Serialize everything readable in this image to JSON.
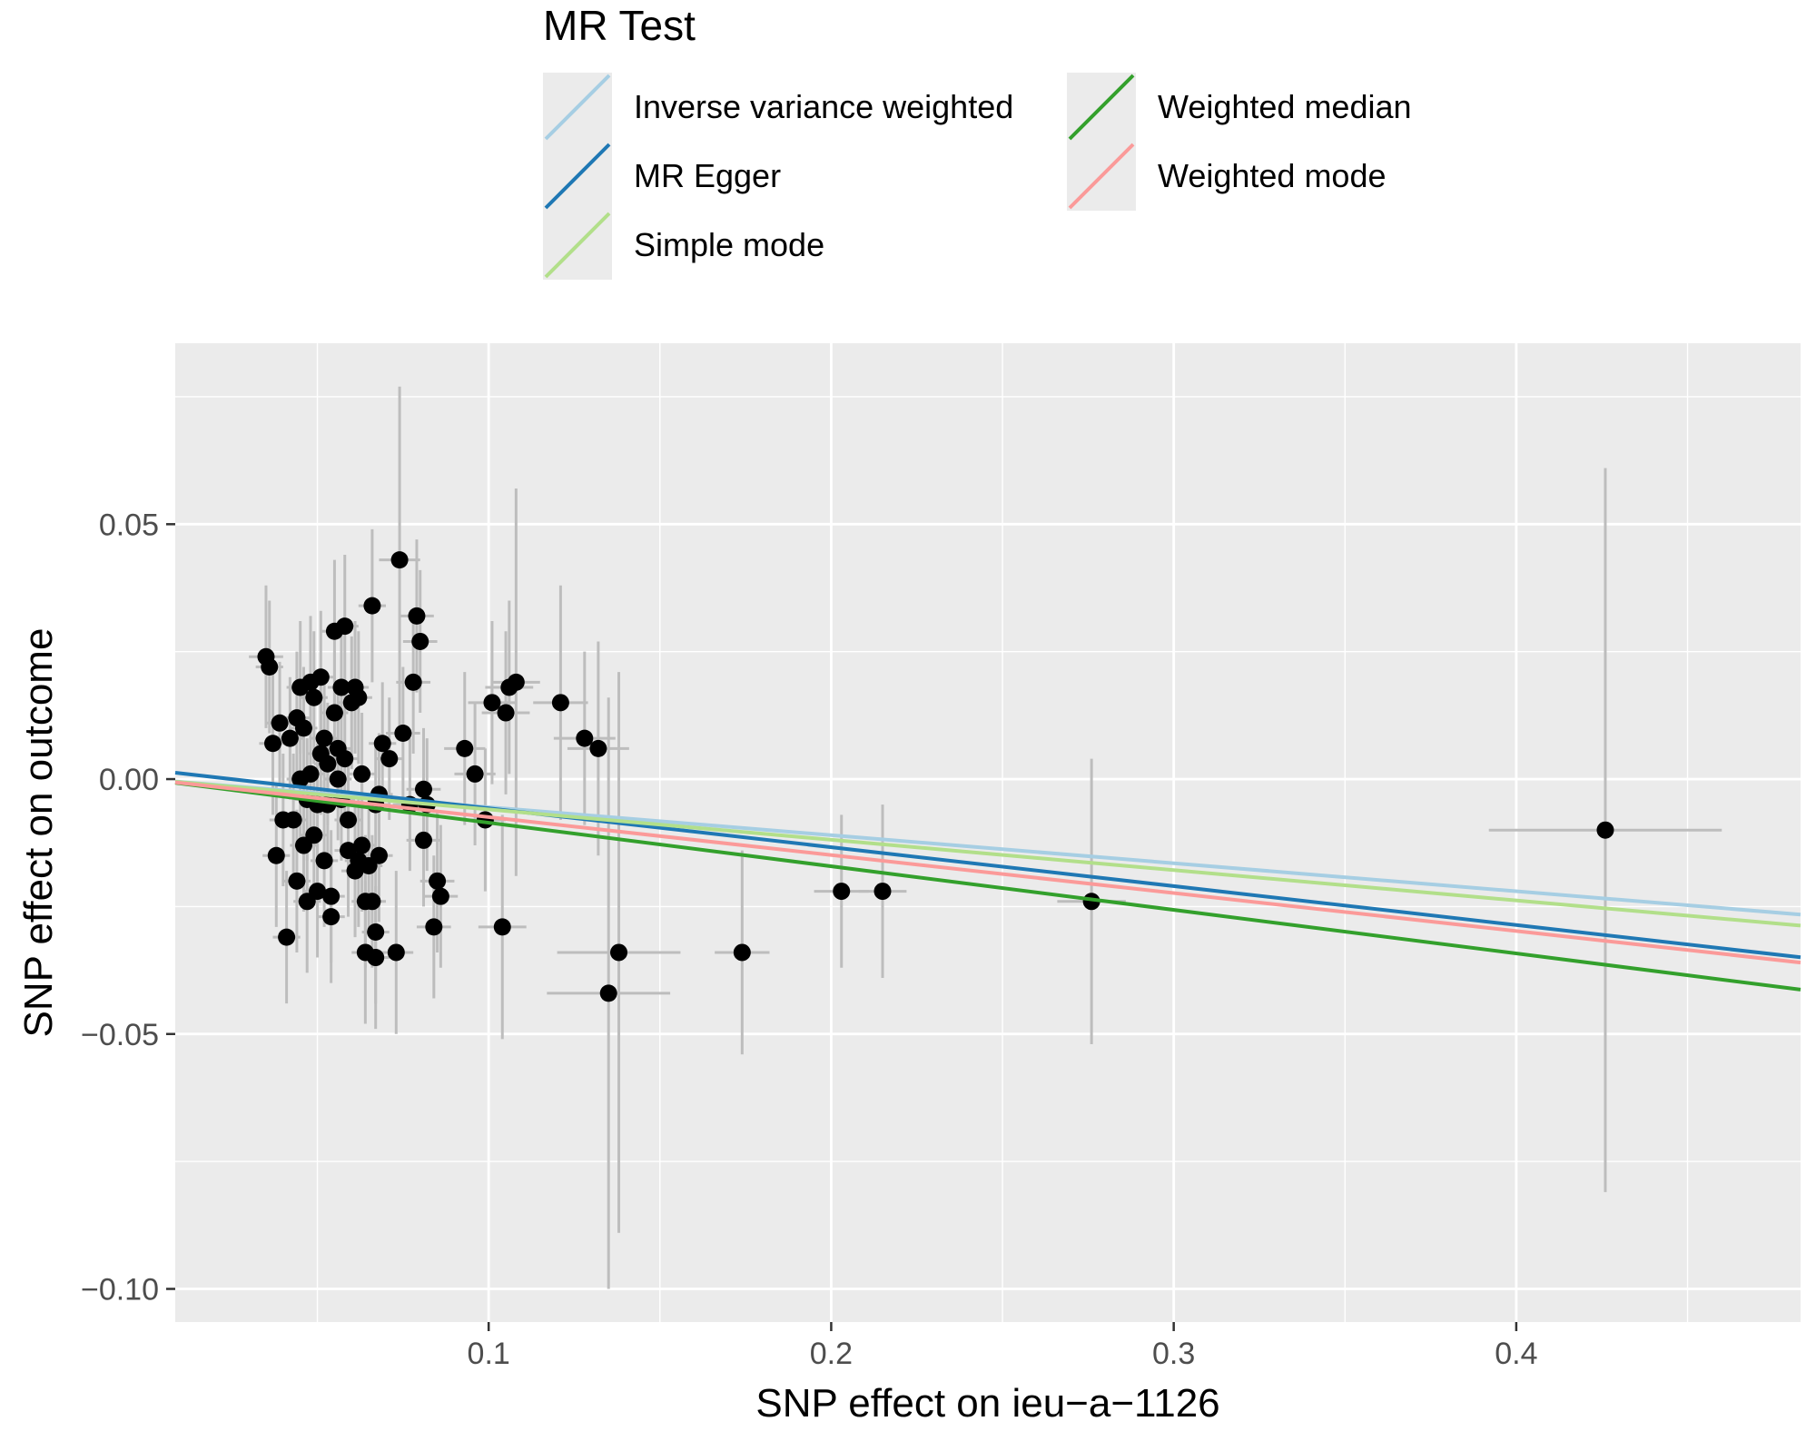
{
  "chart_data": {
    "type": "scatter",
    "xlabel": "SNP effect on ieu−a−1126",
    "ylabel": "SNP effect on outcome",
    "xlim": [
      0.0085,
      0.483
    ],
    "ylim": [
      -0.1065,
      0.0855
    ],
    "x_ticks": [
      {
        "v": 0.1,
        "label": "0.1"
      },
      {
        "v": 0.2,
        "label": "0.2"
      },
      {
        "v": 0.3,
        "label": "0.3"
      },
      {
        "v": 0.4,
        "label": "0.4"
      }
    ],
    "y_ticks": [
      {
        "v": 0.05,
        "label": "0.05"
      },
      {
        "v": 0.0,
        "label": "0.00"
      },
      {
        "v": -0.05,
        "label": "−0.05"
      },
      {
        "v": -0.1,
        "label": "−0.10"
      }
    ],
    "legend": {
      "title": "MR Test",
      "position": "top",
      "entries": [
        {
          "name": "Inverse variance weighted",
          "color": "#A6CEE3"
        },
        {
          "name": "MR Egger",
          "color": "#1F78B4"
        },
        {
          "name": "Simple mode",
          "color": "#B2DF8A"
        },
        {
          "name": "Weighted median",
          "color": "#33A02C"
        },
        {
          "name": "Weighted mode",
          "color": "#FB9A99"
        }
      ]
    },
    "lines": [
      {
        "name": "Inverse variance weighted",
        "color": "#A6CEE3",
        "intercept": 0.0,
        "slope": -0.055
      },
      {
        "name": "MR Egger",
        "color": "#1F78B4",
        "intercept": 0.0019,
        "slope": -0.0763
      },
      {
        "name": "Simple mode",
        "color": "#B2DF8A",
        "intercept": 0.0,
        "slope": -0.0595
      },
      {
        "name": "Weighted median",
        "color": "#33A02C",
        "intercept": 0.0,
        "slope": -0.0855
      },
      {
        "name": "Weighted mode",
        "color": "#FB9A99",
        "intercept": 0.0,
        "slope": -0.0745
      }
    ],
    "points": [
      {
        "x": 0.035,
        "y": 0.024,
        "xse": 0.005,
        "yse": 0.014
      },
      {
        "x": 0.036,
        "y": 0.022,
        "xse": 0.004,
        "yse": 0.013
      },
      {
        "x": 0.037,
        "y": 0.007,
        "xse": 0.004,
        "yse": 0.014
      },
      {
        "x": 0.038,
        "y": -0.015,
        "xse": 0.004,
        "yse": 0.014
      },
      {
        "x": 0.039,
        "y": 0.011,
        "xse": 0.004,
        "yse": 0.012
      },
      {
        "x": 0.04,
        "y": -0.008,
        "xse": 0.004,
        "yse": 0.013
      },
      {
        "x": 0.041,
        "y": -0.031,
        "xse": 0.004,
        "yse": 0.013
      },
      {
        "x": 0.042,
        "y": 0.008,
        "xse": 0.004,
        "yse": 0.012
      },
      {
        "x": 0.043,
        "y": -0.008,
        "xse": 0.004,
        "yse": 0.013
      },
      {
        "x": 0.044,
        "y": 0.012,
        "xse": 0.004,
        "yse": 0.013
      },
      {
        "x": 0.044,
        "y": -0.02,
        "xse": 0.004,
        "yse": 0.014
      },
      {
        "x": 0.045,
        "y": 0.0,
        "xse": 0.004,
        "yse": 0.012
      },
      {
        "x": 0.045,
        "y": 0.018,
        "xse": 0.004,
        "yse": 0.013
      },
      {
        "x": 0.046,
        "y": -0.013,
        "xse": 0.004,
        "yse": 0.013
      },
      {
        "x": 0.046,
        "y": 0.01,
        "xse": 0.004,
        "yse": 0.012
      },
      {
        "x": 0.047,
        "y": -0.024,
        "xse": 0.004,
        "yse": 0.014
      },
      {
        "x": 0.047,
        "y": -0.004,
        "xse": 0.004,
        "yse": 0.012
      },
      {
        "x": 0.048,
        "y": 0.019,
        "xse": 0.004,
        "yse": 0.013
      },
      {
        "x": 0.048,
        "y": 0.001,
        "xse": 0.004,
        "yse": 0.012
      },
      {
        "x": 0.049,
        "y": -0.011,
        "xse": 0.004,
        "yse": 0.013
      },
      {
        "x": 0.049,
        "y": 0.016,
        "xse": 0.004,
        "yse": 0.013
      },
      {
        "x": 0.05,
        "y": -0.022,
        "xse": 0.004,
        "yse": 0.013
      },
      {
        "x": 0.05,
        "y": -0.005,
        "xse": 0.004,
        "yse": 0.012
      },
      {
        "x": 0.051,
        "y": 0.02,
        "xse": 0.004,
        "yse": 0.013
      },
      {
        "x": 0.051,
        "y": 0.005,
        "xse": 0.004,
        "yse": 0.012
      },
      {
        "x": 0.052,
        "y": -0.016,
        "xse": 0.004,
        "yse": 0.013
      },
      {
        "x": 0.052,
        "y": 0.008,
        "xse": 0.004,
        "yse": 0.012
      },
      {
        "x": 0.053,
        "y": -0.005,
        "xse": 0.004,
        "yse": 0.012
      },
      {
        "x": 0.053,
        "y": 0.003,
        "xse": 0.004,
        "yse": 0.012
      },
      {
        "x": 0.054,
        "y": -0.023,
        "xse": 0.004,
        "yse": 0.013
      },
      {
        "x": 0.054,
        "y": -0.027,
        "xse": 0.004,
        "yse": 0.013
      },
      {
        "x": 0.055,
        "y": 0.013,
        "xse": 0.004,
        "yse": 0.012
      },
      {
        "x": 0.055,
        "y": 0.029,
        "xse": 0.004,
        "yse": 0.014
      },
      {
        "x": 0.056,
        "y": 0.0,
        "xse": 0.004,
        "yse": 0.012
      },
      {
        "x": 0.056,
        "y": 0.006,
        "xse": 0.004,
        "yse": 0.012
      },
      {
        "x": 0.057,
        "y": -0.004,
        "xse": 0.004,
        "yse": 0.012
      },
      {
        "x": 0.057,
        "y": 0.018,
        "xse": 0.004,
        "yse": 0.013
      },
      {
        "x": 0.058,
        "y": 0.03,
        "xse": 0.004,
        "yse": 0.014
      },
      {
        "x": 0.058,
        "y": 0.004,
        "xse": 0.004,
        "yse": 0.012
      },
      {
        "x": 0.059,
        "y": -0.008,
        "xse": 0.004,
        "yse": 0.012
      },
      {
        "x": 0.059,
        "y": -0.014,
        "xse": 0.004,
        "yse": 0.013
      },
      {
        "x": 0.06,
        "y": 0.015,
        "xse": 0.004,
        "yse": 0.013
      },
      {
        "x": 0.061,
        "y": 0.018,
        "xse": 0.004,
        "yse": 0.013
      },
      {
        "x": 0.061,
        "y": -0.018,
        "xse": 0.004,
        "yse": 0.013
      },
      {
        "x": 0.062,
        "y": 0.016,
        "xse": 0.004,
        "yse": 0.013
      },
      {
        "x": 0.062,
        "y": -0.016,
        "xse": 0.004,
        "yse": 0.013
      },
      {
        "x": 0.063,
        "y": -0.013,
        "xse": 0.004,
        "yse": 0.013
      },
      {
        "x": 0.063,
        "y": 0.001,
        "xse": 0.004,
        "yse": 0.012
      },
      {
        "x": 0.064,
        "y": -0.034,
        "xse": 0.004,
        "yse": 0.014
      },
      {
        "x": 0.064,
        "y": -0.024,
        "xse": 0.004,
        "yse": 0.013
      },
      {
        "x": 0.065,
        "y": -0.017,
        "xse": 0.004,
        "yse": 0.013
      },
      {
        "x": 0.066,
        "y": -0.024,
        "xse": 0.004,
        "yse": 0.013
      },
      {
        "x": 0.066,
        "y": 0.034,
        "xse": 0.004,
        "yse": 0.015
      },
      {
        "x": 0.067,
        "y": -0.035,
        "xse": 0.004,
        "yse": 0.014
      },
      {
        "x": 0.067,
        "y": -0.03,
        "xse": 0.004,
        "yse": 0.014
      },
      {
        "x": 0.067,
        "y": -0.005,
        "xse": 0.004,
        "yse": 0.012
      },
      {
        "x": 0.068,
        "y": -0.015,
        "xse": 0.004,
        "yse": 0.013
      },
      {
        "x": 0.068,
        "y": -0.003,
        "xse": 0.004,
        "yse": 0.012
      },
      {
        "x": 0.069,
        "y": 0.007,
        "xse": 0.004,
        "yse": 0.012
      },
      {
        "x": 0.071,
        "y": 0.004,
        "xse": 0.004,
        "yse": 0.012
      },
      {
        "x": 0.073,
        "y": -0.034,
        "xse": 0.005,
        "yse": 0.016
      },
      {
        "x": 0.074,
        "y": 0.043,
        "xse": 0.006,
        "yse": 0.034
      },
      {
        "x": 0.075,
        "y": 0.009,
        "xse": 0.005,
        "yse": 0.013
      },
      {
        "x": 0.077,
        "y": -0.005,
        "xse": 0.005,
        "yse": 0.013
      },
      {
        "x": 0.078,
        "y": 0.019,
        "xse": 0.005,
        "yse": 0.014
      },
      {
        "x": 0.079,
        "y": 0.032,
        "xse": 0.005,
        "yse": 0.015
      },
      {
        "x": 0.08,
        "y": 0.027,
        "xse": 0.005,
        "yse": 0.014
      },
      {
        "x": 0.081,
        "y": -0.002,
        "xse": 0.005,
        "yse": 0.012
      },
      {
        "x": 0.081,
        "y": -0.012,
        "xse": 0.005,
        "yse": 0.013
      },
      {
        "x": 0.082,
        "y": -0.005,
        "xse": 0.005,
        "yse": 0.013
      },
      {
        "x": 0.084,
        "y": -0.029,
        "xse": 0.005,
        "yse": 0.014
      },
      {
        "x": 0.085,
        "y": -0.02,
        "xse": 0.005,
        "yse": 0.014
      },
      {
        "x": 0.086,
        "y": -0.023,
        "xse": 0.005,
        "yse": 0.014
      },
      {
        "x": 0.093,
        "y": 0.006,
        "xse": 0.006,
        "yse": 0.015
      },
      {
        "x": 0.096,
        "y": 0.001,
        "xse": 0.006,
        "yse": 0.014
      },
      {
        "x": 0.099,
        "y": -0.008,
        "xse": 0.006,
        "yse": 0.014
      },
      {
        "x": 0.101,
        "y": 0.015,
        "xse": 0.007,
        "yse": 0.016
      },
      {
        "x": 0.104,
        "y": -0.029,
        "xse": 0.007,
        "yse": 0.022
      },
      {
        "x": 0.105,
        "y": 0.013,
        "xse": 0.007,
        "yse": 0.016
      },
      {
        "x": 0.106,
        "y": 0.018,
        "xse": 0.007,
        "yse": 0.017
      },
      {
        "x": 0.108,
        "y": 0.019,
        "xse": 0.007,
        "yse": 0.038
      },
      {
        "x": 0.121,
        "y": 0.015,
        "xse": 0.008,
        "yse": 0.023
      },
      {
        "x": 0.128,
        "y": 0.008,
        "xse": 0.009,
        "yse": 0.017
      },
      {
        "x": 0.132,
        "y": 0.006,
        "xse": 0.009,
        "yse": 0.021
      },
      {
        "x": 0.135,
        "y": -0.042,
        "xse": 0.018,
        "yse": 0.058
      },
      {
        "x": 0.138,
        "y": -0.034,
        "xse": 0.018,
        "yse": 0.055
      },
      {
        "x": 0.174,
        "y": -0.034,
        "xse": 0.008,
        "yse": 0.02
      },
      {
        "x": 0.203,
        "y": -0.022,
        "xse": 0.008,
        "yse": 0.015
      },
      {
        "x": 0.215,
        "y": -0.022,
        "xse": 0.007,
        "yse": 0.017
      },
      {
        "x": 0.276,
        "y": -0.024,
        "xse": 0.01,
        "yse": 0.028
      },
      {
        "x": 0.426,
        "y": -0.01,
        "xse": 0.034,
        "yse": 0.071
      }
    ]
  }
}
